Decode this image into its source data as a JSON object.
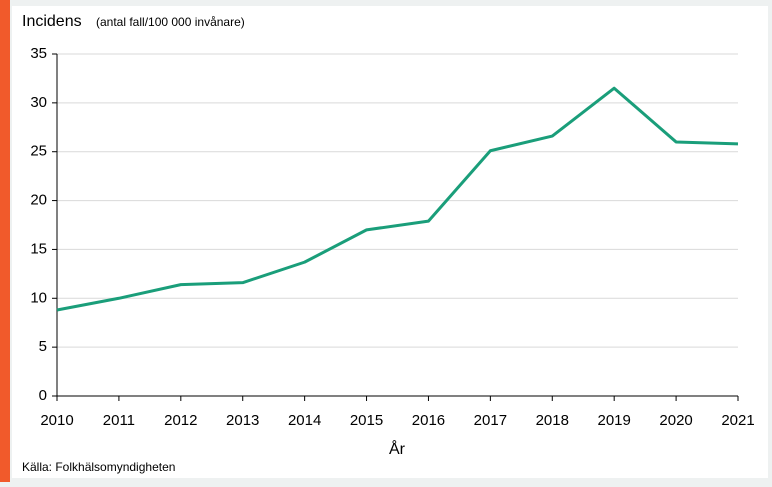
{
  "chart_data": {
    "type": "line",
    "ylabel": "Incidens",
    "ylabel_unit": "(antal fall/100 000 invånare)",
    "xlabel": "År",
    "source": "Källa: Folkhälsomyndigheten",
    "x": [
      2010,
      2011,
      2012,
      2013,
      2014,
      2015,
      2016,
      2017,
      2018,
      2019,
      2020,
      2021
    ],
    "values": [
      8.8,
      10.0,
      11.4,
      11.6,
      13.7,
      17.0,
      17.9,
      25.1,
      26.6,
      31.5,
      26.0,
      25.8
    ],
    "color": "#1a9e7a",
    "xlim": [
      2010,
      2021
    ],
    "xticks": [
      2010,
      2011,
      2012,
      2013,
      2014,
      2015,
      2016,
      2017,
      2018,
      2019,
      2020,
      2021
    ],
    "ylim": [
      0,
      35
    ],
    "yticks": [
      0,
      5,
      10,
      15,
      20,
      25,
      30,
      35
    ],
    "grid": true
  }
}
